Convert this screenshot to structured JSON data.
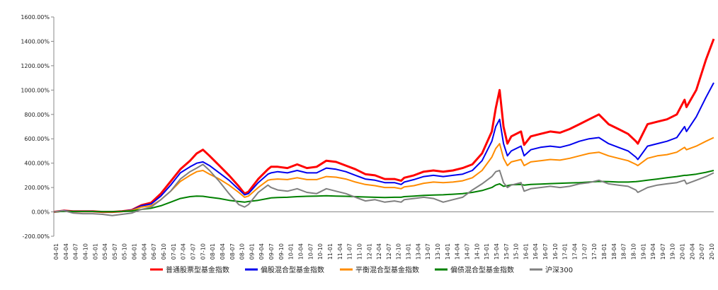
{
  "chart_data": {
    "type": "line",
    "title": "",
    "xlabel": "",
    "ylabel": "",
    "ylim": [
      -200,
      1600
    ],
    "y_ticks": [
      -200,
      0,
      200,
      400,
      600,
      800,
      1000,
      1200,
      1400,
      1600
    ],
    "y_tick_labels": [
      "-200.00%",
      "0.00%",
      "200.00%",
      "400.00%",
      "600.00%",
      "800.00%",
      "1000.00%",
      "1200.00%",
      "1400.00%",
      "1600.00%"
    ],
    "x_tick_labels": [
      "04-01",
      "04-04",
      "04-07",
      "04-10",
      "05-01",
      "05-04",
      "05-07",
      "05-10",
      "06-01",
      "06-04",
      "06-07",
      "06-10",
      "07-01",
      "07-04",
      "07-07",
      "07-10",
      "08-01",
      "08-04",
      "08-07",
      "08-10",
      "09-01",
      "09-04",
      "09-07",
      "09-10",
      "10-01",
      "10-04",
      "10-07",
      "10-10",
      "11-01",
      "11-04",
      "11-07",
      "11-10",
      "12-01",
      "12-04",
      "12-07",
      "12-10",
      "13-01",
      "13-04",
      "13-07",
      "13-10",
      "14-01",
      "14-04",
      "14-07",
      "14-10",
      "15-01",
      "15-04",
      "15-07",
      "15-10",
      "16-01",
      "16-04",
      "16-07",
      "16-10",
      "17-01",
      "17-04",
      "17-07",
      "17-10",
      "18-01",
      "18-04",
      "18-07",
      "18-10",
      "19-01",
      "19-04",
      "19-07",
      "19-10",
      "20-01",
      "20-04",
      "20-07",
      "20-10"
    ],
    "x": [
      2004.0,
      2004.25,
      2004.5,
      2004.75,
      2005.0,
      2005.25,
      2005.5,
      2005.75,
      2006.0,
      2006.25,
      2006.5,
      2006.75,
      2007.0,
      2007.25,
      2007.5,
      2007.67,
      2007.83,
      2008.0,
      2008.25,
      2008.5,
      2008.75,
      2008.9,
      2009.0,
      2009.25,
      2009.5,
      2009.58,
      2009.75,
      2010.0,
      2010.25,
      2010.5,
      2010.75,
      2011.0,
      2011.25,
      2011.5,
      2011.75,
      2012.0,
      2012.25,
      2012.5,
      2012.75,
      2012.92,
      2013.0,
      2013.25,
      2013.5,
      2013.75,
      2014.0,
      2014.25,
      2014.5,
      2014.75,
      2015.0,
      2015.25,
      2015.35,
      2015.45,
      2015.55,
      2015.65,
      2015.75,
      2016.0,
      2016.08,
      2016.25,
      2016.5,
      2016.75,
      2017.0,
      2017.25,
      2017.5,
      2017.75,
      2018.0,
      2018.25,
      2018.5,
      2018.75,
      2018.95,
      2019.0,
      2019.25,
      2019.5,
      2019.75,
      2020.0,
      2020.2,
      2020.25,
      2020.5,
      2020.75,
      2020.95
    ],
    "series": [
      {
        "name": "普通股票型基金指数",
        "color": "#ff0000",
        "width": 3,
        "values": [
          0,
          10,
          5,
          5,
          5,
          0,
          0,
          5,
          15,
          55,
          75,
          150,
          250,
          350,
          420,
          480,
          510,
          460,
          380,
          300,
          210,
          150,
          165,
          270,
          350,
          370,
          370,
          360,
          390,
          360,
          370,
          420,
          410,
          380,
          350,
          310,
          300,
          270,
          270,
          255,
          280,
          300,
          330,
          340,
          330,
          340,
          360,
          390,
          480,
          660,
          850,
          1000,
          700,
          560,
          620,
          660,
          550,
          620,
          640,
          660,
          650,
          680,
          720,
          760,
          800,
          720,
          680,
          640,
          580,
          560,
          720,
          740,
          760,
          800,
          920,
          860,
          1000,
          1250,
          1420
        ]
      },
      {
        "name": "偏股混合型基金指数",
        "color": "#0000ee",
        "width": 2,
        "values": [
          0,
          10,
          5,
          5,
          5,
          0,
          0,
          5,
          15,
          50,
          65,
          130,
          220,
          320,
          370,
          400,
          410,
          380,
          320,
          260,
          185,
          140,
          150,
          240,
          310,
          320,
          330,
          320,
          340,
          320,
          320,
          360,
          350,
          330,
          300,
          270,
          260,
          240,
          240,
          225,
          245,
          265,
          290,
          300,
          290,
          300,
          310,
          340,
          420,
          580,
          700,
          760,
          560,
          460,
          500,
          540,
          460,
          510,
          530,
          540,
          530,
          550,
          580,
          600,
          610,
          560,
          530,
          500,
          450,
          430,
          540,
          560,
          580,
          610,
          700,
          660,
          780,
          940,
          1060
        ]
      },
      {
        "name": "平衡混合型基金指数",
        "color": "#ff8c00",
        "width": 2,
        "values": [
          0,
          8,
          4,
          4,
          4,
          0,
          0,
          4,
          12,
          40,
          50,
          100,
          170,
          250,
          300,
          330,
          340,
          310,
          270,
          220,
          160,
          120,
          130,
          200,
          260,
          265,
          270,
          265,
          280,
          265,
          265,
          290,
          285,
          270,
          245,
          225,
          215,
          200,
          200,
          190,
          205,
          215,
          235,
          245,
          240,
          245,
          255,
          280,
          340,
          450,
          520,
          560,
          440,
          380,
          410,
          430,
          380,
          410,
          420,
          430,
          425,
          440,
          460,
          480,
          490,
          460,
          440,
          420,
          390,
          380,
          440,
          460,
          470,
          490,
          530,
          510,
          540,
          580,
          610
        ]
      },
      {
        "name": "偏债混合型基金指数",
        "color": "#008000",
        "width": 2,
        "values": [
          0,
          5,
          3,
          3,
          3,
          2,
          2,
          4,
          8,
          20,
          30,
          50,
          80,
          110,
          125,
          130,
          128,
          120,
          110,
          95,
          85,
          80,
          85,
          95,
          110,
          115,
          118,
          120,
          125,
          128,
          130,
          132,
          130,
          128,
          125,
          122,
          120,
          118,
          120,
          120,
          125,
          130,
          135,
          138,
          140,
          145,
          150,
          160,
          175,
          200,
          220,
          230,
          210,
          215,
          222,
          225,
          220,
          225,
          228,
          232,
          235,
          238,
          240,
          245,
          250,
          248,
          245,
          245,
          248,
          250,
          260,
          270,
          280,
          290,
          300,
          300,
          310,
          325,
          340
        ]
      },
      {
        "name": "沪深300",
        "color": "#808080",
        "width": 2,
        "values": [
          0,
          10,
          -10,
          -15,
          -15,
          -20,
          -30,
          -20,
          -10,
          20,
          40,
          100,
          170,
          270,
          330,
          360,
          390,
          340,
          250,
          150,
          60,
          40,
          60,
          160,
          220,
          200,
          180,
          170,
          190,
          160,
          150,
          190,
          170,
          150,
          120,
          90,
          100,
          80,
          90,
          80,
          100,
          110,
          120,
          110,
          80,
          100,
          120,
          180,
          230,
          290,
          330,
          340,
          240,
          200,
          220,
          240,
          170,
          190,
          200,
          210,
          200,
          210,
          230,
          240,
          260,
          230,
          220,
          210,
          180,
          160,
          200,
          220,
          230,
          240,
          260,
          230,
          260,
          290,
          320
        ]
      }
    ],
    "legend_position": "bottom",
    "grid": false
  }
}
